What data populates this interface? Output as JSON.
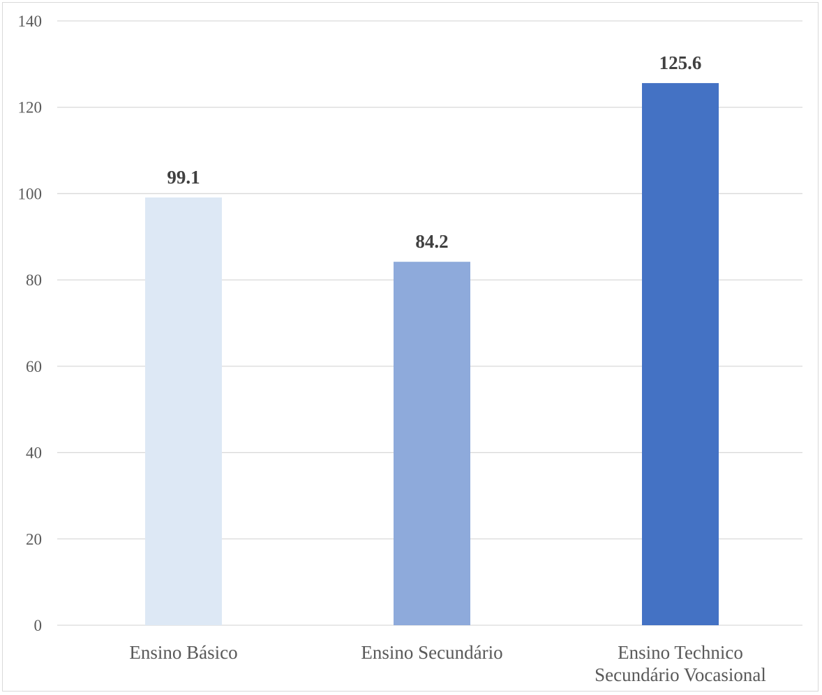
{
  "chart_data": {
    "type": "bar",
    "title": "",
    "xlabel": "",
    "ylabel": "",
    "categories": [
      [
        "Ensino Básico"
      ],
      [
        "Ensino Secundário"
      ],
      [
        "Ensino Technico",
        "Secundário Vocasional"
      ]
    ],
    "values": [
      99.1,
      84.2,
      125.6
    ],
    "data_labels": [
      "99.1",
      "84.2",
      "125.6"
    ],
    "bar_colors": [
      "#dde8f5",
      "#8eaadb",
      "#4472c4"
    ],
    "ylim": [
      0,
      140
    ],
    "yticks": [
      0,
      20,
      40,
      60,
      80,
      100,
      120,
      140
    ],
    "grid": true,
    "legend": "none"
  }
}
